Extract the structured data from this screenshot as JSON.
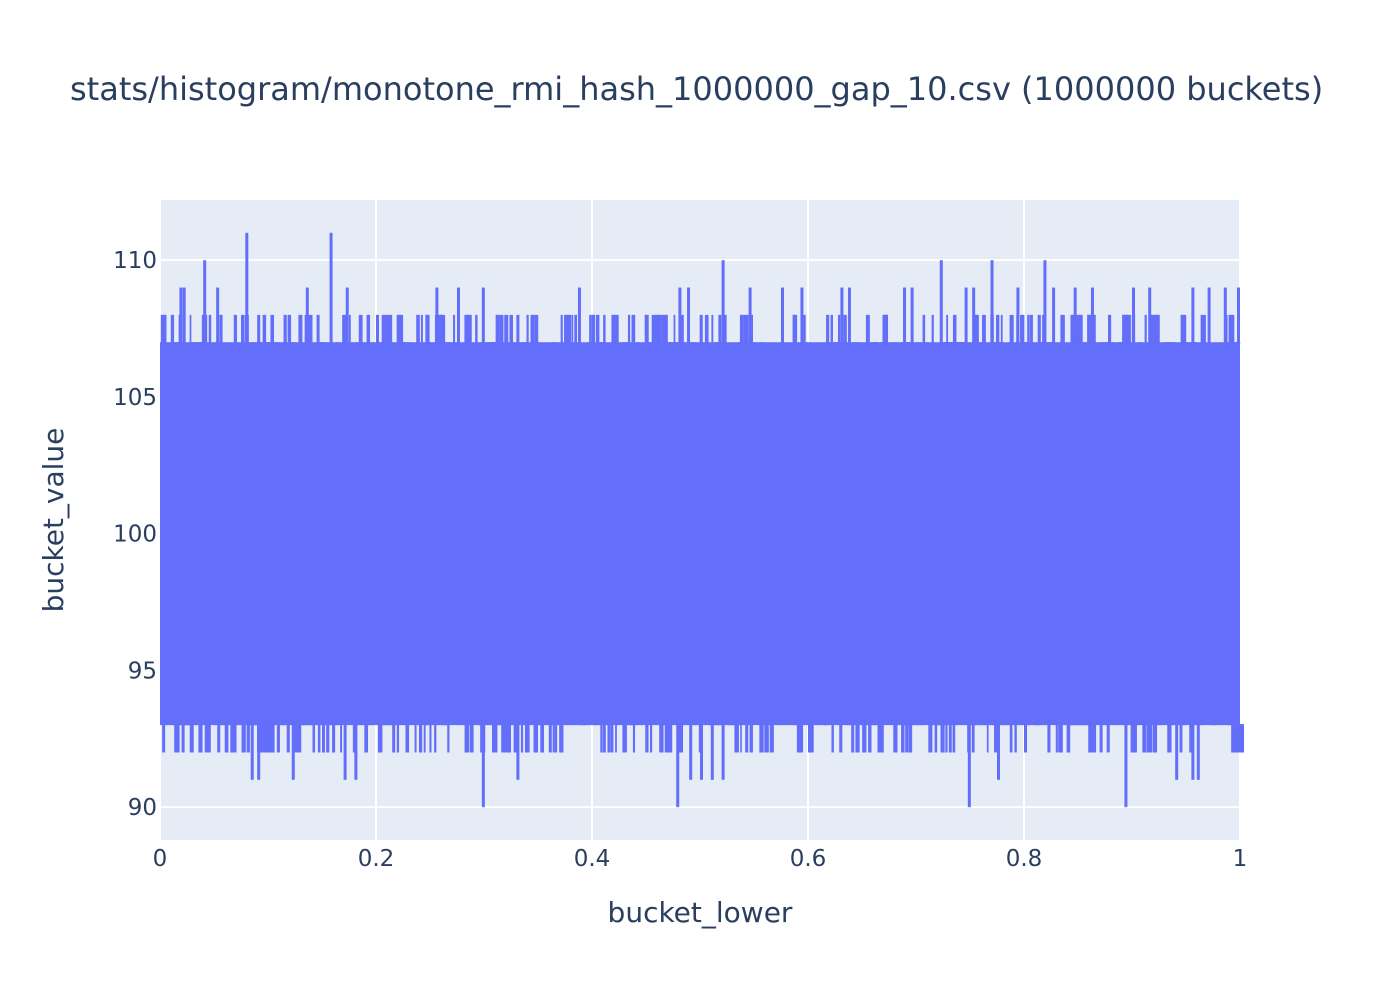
{
  "chart_data": {
    "type": "histogram",
    "title": "stats/histogram/monotone_rmi_hash_1000000_gap_10.csv (1000000 buckets)",
    "xlabel": "bucket_lower",
    "ylabel": "bucket_value",
    "xlim": [
      0,
      1
    ],
    "ylim": [
      88.8,
      112.2
    ],
    "x_ticks": [
      0,
      0.2,
      0.4,
      0.6,
      0.8,
      1
    ],
    "x_tick_labels": [
      "0",
      "0.2",
      "0.4",
      "0.6",
      "0.8",
      "1"
    ],
    "y_ticks": [
      90,
      95,
      100,
      105,
      110
    ],
    "y_tick_labels": [
      "90",
      "95",
      "100",
      "105",
      "110"
    ],
    "series_color": "#636efa",
    "plot_bg": "#e5ecf6",
    "dense_band": [
      93,
      107
    ],
    "upper_spikes": [
      {
        "x": 0.003,
        "y": 108
      },
      {
        "x": 0.018,
        "y": 109
      },
      {
        "x": 0.021,
        "y": 109
      },
      {
        "x": 0.04,
        "y": 110
      },
      {
        "x": 0.052,
        "y": 109
      },
      {
        "x": 0.075,
        "y": 108
      },
      {
        "x": 0.079,
        "y": 111
      },
      {
        "x": 0.09,
        "y": 108
      },
      {
        "x": 0.135,
        "y": 109
      },
      {
        "x": 0.145,
        "y": 108
      },
      {
        "x": 0.157,
        "y": 111
      },
      {
        "x": 0.172,
        "y": 109
      },
      {
        "x": 0.2,
        "y": 108
      },
      {
        "x": 0.255,
        "y": 109
      },
      {
        "x": 0.275,
        "y": 109
      },
      {
        "x": 0.298,
        "y": 109
      },
      {
        "x": 0.33,
        "y": 108
      },
      {
        "x": 0.387,
        "y": 109
      },
      {
        "x": 0.42,
        "y": 108
      },
      {
        "x": 0.48,
        "y": 109
      },
      {
        "x": 0.488,
        "y": 109
      },
      {
        "x": 0.52,
        "y": 110
      },
      {
        "x": 0.54,
        "y": 108
      },
      {
        "x": 0.545,
        "y": 109
      },
      {
        "x": 0.575,
        "y": 109
      },
      {
        "x": 0.593,
        "y": 109
      },
      {
        "x": 0.63,
        "y": 109
      },
      {
        "x": 0.637,
        "y": 109
      },
      {
        "x": 0.688,
        "y": 109
      },
      {
        "x": 0.695,
        "y": 109
      },
      {
        "x": 0.722,
        "y": 110
      },
      {
        "x": 0.745,
        "y": 109
      },
      {
        "x": 0.752,
        "y": 109
      },
      {
        "x": 0.769,
        "y": 110
      },
      {
        "x": 0.793,
        "y": 109
      },
      {
        "x": 0.818,
        "y": 110
      },
      {
        "x": 0.826,
        "y": 109
      },
      {
        "x": 0.846,
        "y": 109
      },
      {
        "x": 0.862,
        "y": 109
      },
      {
        "x": 0.9,
        "y": 109
      },
      {
        "x": 0.915,
        "y": 109
      },
      {
        "x": 0.955,
        "y": 109
      },
      {
        "x": 0.97,
        "y": 109
      },
      {
        "x": 0.985,
        "y": 109
      },
      {
        "x": 0.998,
        "y": 109
      }
    ],
    "lower_spikes": [
      {
        "x": 0.002,
        "y": 92
      },
      {
        "x": 0.02,
        "y": 92
      },
      {
        "x": 0.053,
        "y": 92
      },
      {
        "x": 0.084,
        "y": 91
      },
      {
        "x": 0.09,
        "y": 91
      },
      {
        "x": 0.122,
        "y": 91
      },
      {
        "x": 0.15,
        "y": 92
      },
      {
        "x": 0.17,
        "y": 91
      },
      {
        "x": 0.18,
        "y": 91
      },
      {
        "x": 0.215,
        "y": 92
      },
      {
        "x": 0.24,
        "y": 92
      },
      {
        "x": 0.298,
        "y": 90
      },
      {
        "x": 0.33,
        "y": 91
      },
      {
        "x": 0.36,
        "y": 92
      },
      {
        "x": 0.41,
        "y": 92
      },
      {
        "x": 0.478,
        "y": 90
      },
      {
        "x": 0.49,
        "y": 91
      },
      {
        "x": 0.5,
        "y": 91
      },
      {
        "x": 0.51,
        "y": 91
      },
      {
        "x": 0.52,
        "y": 91
      },
      {
        "x": 0.555,
        "y": 92
      },
      {
        "x": 0.6,
        "y": 92
      },
      {
        "x": 0.64,
        "y": 92
      },
      {
        "x": 0.69,
        "y": 92
      },
      {
        "x": 0.748,
        "y": 90
      },
      {
        "x": 0.775,
        "y": 91
      },
      {
        "x": 0.8,
        "y": 92
      },
      {
        "x": 0.84,
        "y": 92
      },
      {
        "x": 0.87,
        "y": 92
      },
      {
        "x": 0.893,
        "y": 90
      },
      {
        "x": 0.94,
        "y": 91
      },
      {
        "x": 0.955,
        "y": 91
      },
      {
        "x": 0.96,
        "y": 91
      },
      {
        "x": 0.995,
        "y": 92
      }
    ]
  }
}
